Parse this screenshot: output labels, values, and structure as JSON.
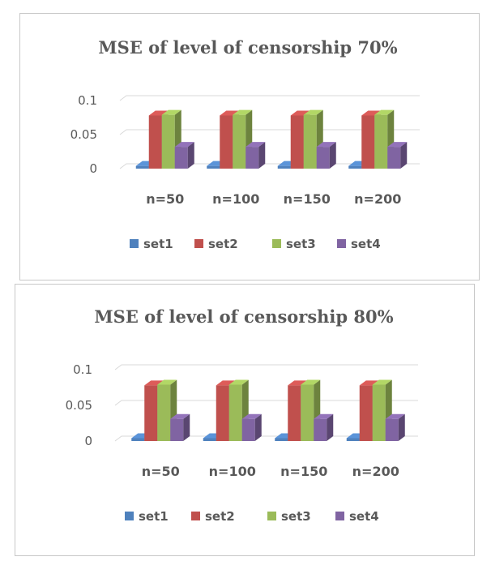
{
  "chart_data": [
    {
      "type": "bar",
      "title": "MSE of level of censorship 70%",
      "categories": [
        "n=50",
        "n=100",
        "n=150",
        "n=200"
      ],
      "yticks": [
        "0",
        "0.05",
        "0.1"
      ],
      "ylim": [
        0,
        0.1
      ],
      "grid": true,
      "legend_position": "bottom",
      "series": [
        {
          "name": "set1",
          "color": "#4F81BD",
          "values": [
            0.004,
            0.004,
            0.004,
            0.004
          ]
        },
        {
          "name": "set2",
          "color": "#C0504D",
          "values": [
            0.078,
            0.078,
            0.078,
            0.078
          ]
        },
        {
          "name": "set3",
          "color": "#9BBB59",
          "values": [
            0.079,
            0.079,
            0.079,
            0.079
          ]
        },
        {
          "name": "set4",
          "color": "#8064A2",
          "values": [
            0.032,
            0.032,
            0.032,
            0.032
          ]
        }
      ]
    },
    {
      "type": "bar",
      "title": "MSE of level of censorship 80%",
      "categories": [
        "n=50",
        "n=100",
        "n=150",
        "n=200"
      ],
      "yticks": [
        "0",
        "0.05",
        "0.1"
      ],
      "ylim": [
        0,
        0.1
      ],
      "grid": true,
      "legend_position": "bottom",
      "series": [
        {
          "name": "set1",
          "color": "#4F81BD",
          "values": [
            0.004,
            0.004,
            0.004,
            0.004
          ]
        },
        {
          "name": "set2",
          "color": "#C0504D",
          "values": [
            0.078,
            0.078,
            0.078,
            0.078
          ]
        },
        {
          "name": "set3",
          "color": "#9BBB59",
          "values": [
            0.079,
            0.079,
            0.079,
            0.079
          ]
        },
        {
          "name": "set4",
          "color": "#8064A2",
          "values": [
            0.031,
            0.031,
            0.031,
            0.031
          ]
        }
      ]
    }
  ]
}
